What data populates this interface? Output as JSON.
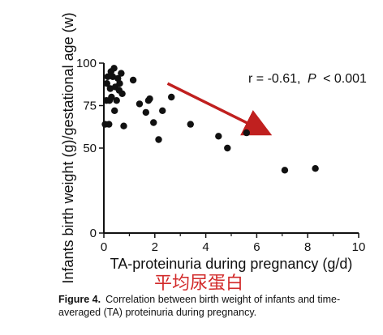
{
  "chart_data": {
    "type": "scatter",
    "xlabel": "TA-proteinuria during pregnancy (g/d)",
    "ylabel": "Infants birth weight (g)/gestational age (w)",
    "xlim": [
      0,
      10
    ],
    "ylim": [
      0,
      100
    ],
    "xticks": [
      "0",
      "2",
      "4",
      "6",
      "8",
      "10"
    ],
    "yticks": [
      "0",
      "50",
      "75",
      "100"
    ],
    "grid": false,
    "annotation": {
      "r": "r = -0.61,",
      "p_symbol": "P",
      "p_value": "< 0.001"
    },
    "arrow": {
      "from": [
        2.5,
        88
      ],
      "to": [
        6.4,
        59
      ],
      "color": "#c0201f"
    },
    "point_color": "#111111",
    "points": [
      {
        "x": 0.05,
        "y": 64
      },
      {
        "x": 0.1,
        "y": 78
      },
      {
        "x": 0.12,
        "y": 88
      },
      {
        "x": 0.15,
        "y": 92
      },
      {
        "x": 0.2,
        "y": 64
      },
      {
        "x": 0.22,
        "y": 78
      },
      {
        "x": 0.25,
        "y": 85
      },
      {
        "x": 0.28,
        "y": 95
      },
      {
        "x": 0.3,
        "y": 80
      },
      {
        "x": 0.35,
        "y": 92
      },
      {
        "x": 0.4,
        "y": 97
      },
      {
        "x": 0.42,
        "y": 72
      },
      {
        "x": 0.45,
        "y": 86
      },
      {
        "x": 0.5,
        "y": 78
      },
      {
        "x": 0.55,
        "y": 91
      },
      {
        "x": 0.6,
        "y": 84
      },
      {
        "x": 0.62,
        "y": 88
      },
      {
        "x": 0.68,
        "y": 94
      },
      {
        "x": 0.72,
        "y": 82
      },
      {
        "x": 0.78,
        "y": 63
      },
      {
        "x": 1.15,
        "y": 90
      },
      {
        "x": 1.4,
        "y": 76
      },
      {
        "x": 1.65,
        "y": 71
      },
      {
        "x": 1.75,
        "y": 78
      },
      {
        "x": 1.8,
        "y": 79
      },
      {
        "x": 1.95,
        "y": 65
      },
      {
        "x": 2.15,
        "y": 55
      },
      {
        "x": 2.3,
        "y": 72
      },
      {
        "x": 2.65,
        "y": 80
      },
      {
        "x": 3.4,
        "y": 64
      },
      {
        "x": 4.5,
        "y": 57
      },
      {
        "x": 4.85,
        "y": 50
      },
      {
        "x": 5.6,
        "y": 59
      },
      {
        "x": 7.1,
        "y": 37
      },
      {
        "x": 8.3,
        "y": 38
      }
    ]
  },
  "overlay_text": "平均尿蛋白",
  "caption": {
    "label": "Figure 4.",
    "text": "Correlation between birth weight of infants and time-averaged (TA) proteinuria during pregnancy."
  }
}
